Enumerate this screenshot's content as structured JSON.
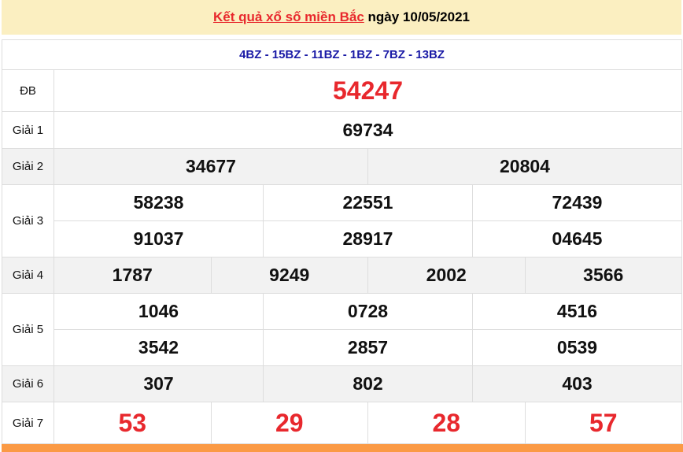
{
  "header": {
    "link": "Kết quả xổ số miền Bắc",
    "date_text": "ngày 10/05/2021"
  },
  "codes": "4BZ - 15BZ - 11BZ - 1BZ - 7BZ - 13BZ",
  "rows": {
    "db": {
      "label": "ĐB",
      "values": [
        "54247"
      ]
    },
    "g1": {
      "label": "Giải 1",
      "values": [
        "69734"
      ]
    },
    "g2": {
      "label": "Giải 2",
      "values": [
        "34677",
        "20804"
      ]
    },
    "g3": {
      "label": "Giải 3",
      "values": [
        "58238",
        "22551",
        "72439",
        "91037",
        "28917",
        "04645"
      ]
    },
    "g4": {
      "label": "Giải 4",
      "values": [
        "1787",
        "9249",
        "2002",
        "3566"
      ]
    },
    "g5": {
      "label": "Giải 5",
      "values": [
        "1046",
        "0728",
        "4516",
        "3542",
        "2857",
        "0539"
      ]
    },
    "g6": {
      "label": "Giải 6",
      "values": [
        "307",
        "802",
        "403"
      ]
    },
    "g7": {
      "label": "Giải 7",
      "values": [
        "53",
        "29",
        "28",
        "57"
      ]
    }
  },
  "colors": {
    "accent_red": "#e8282d",
    "code_blue": "#1a1aa6",
    "header_bg": "#fbefc1",
    "footer_orange": "#fb9a45"
  }
}
